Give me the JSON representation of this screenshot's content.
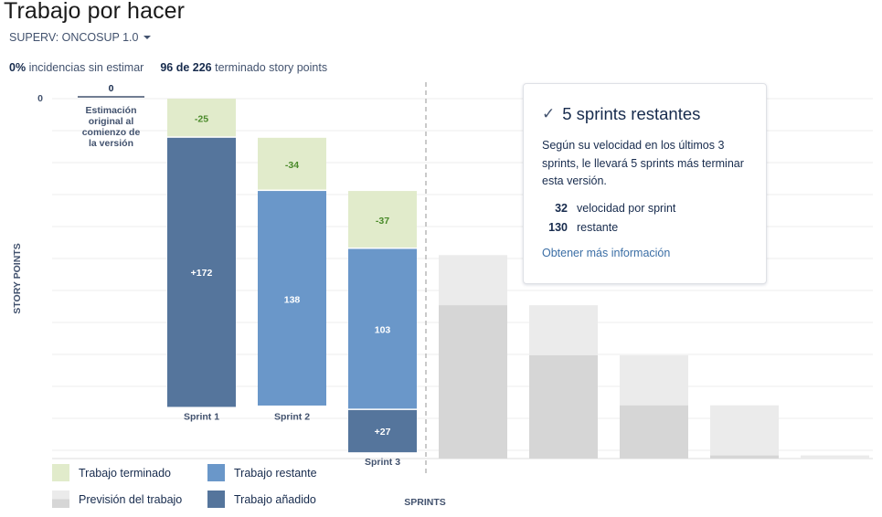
{
  "header": {
    "title": "Trabajo por hacer",
    "version_selector": "SUPERV: ONCOSUP 1.0"
  },
  "stats": {
    "unestimated_value": "0%",
    "unestimated_label": "incidencias sin estimar",
    "done_value": "96 de 226",
    "done_label": "terminado story points"
  },
  "chart_data": {
    "type": "bar",
    "ylabel": "STORY POINTS",
    "xlabel": "SPRINTS",
    "y_tick_label": "0",
    "origin": {
      "value": 0,
      "label_lines": [
        "Estimación",
        "original al",
        "comienzo de",
        "la versión"
      ]
    },
    "sprints": [
      {
        "name": "Sprint 1",
        "completed": 25,
        "remaining": 0,
        "added": 172,
        "completed_label": "-25",
        "remaining_label": "",
        "added_label": "+172"
      },
      {
        "name": "Sprint 2",
        "completed": 34,
        "remaining": 138,
        "added": 0,
        "completed_label": "-34",
        "remaining_label": "138",
        "added_label": ""
      },
      {
        "name": "Sprint 3",
        "completed": 37,
        "remaining": 103,
        "added": 27,
        "completed_label": "-37",
        "remaining_label": "103",
        "added_label": "+27"
      }
    ],
    "forecast": [
      {
        "total": 130,
        "to_complete": 32
      },
      {
        "total": 98,
        "to_complete": 32
      },
      {
        "total": 66,
        "to_complete": 32
      },
      {
        "total": 34,
        "to_complete": 32
      },
      {
        "total": 2,
        "to_complete": 2
      }
    ],
    "y_max": 230,
    "colors": {
      "completed": "#e1ebcb",
      "completed_text": "#4a8a2a",
      "remaining": "#6a97c9",
      "added": "#55759c",
      "forecast_light": "#ebebeb",
      "forecast_dark": "#d6d6d6",
      "grid": "#ececec"
    }
  },
  "popup": {
    "title": "5 sprints restantes",
    "text": "Según su velocidad en los últimos 3 sprints, le llevará 5 sprints más terminar esta versión.",
    "velocity_value": "32",
    "velocity_label": "velocidad por sprint",
    "remaining_value": "130",
    "remaining_label": "restante",
    "link": "Obtener más información"
  },
  "legend": {
    "completed": "Trabajo terminado",
    "remaining": "Trabajo restante",
    "forecast": "Previsión del trabajo",
    "added": "Trabajo añadido"
  }
}
